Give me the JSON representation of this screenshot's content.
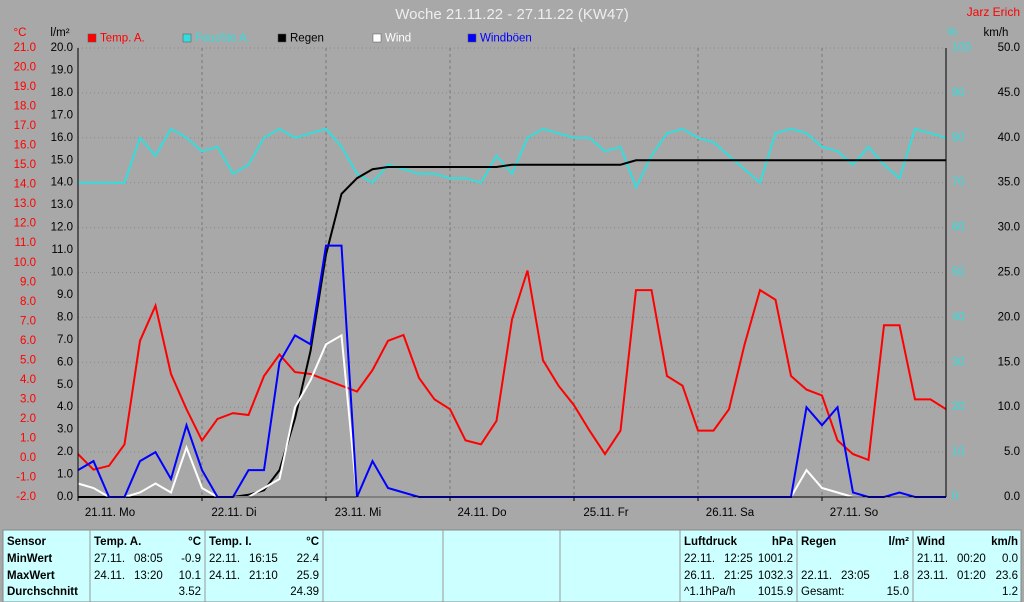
{
  "chart_data": {
    "type": "line",
    "title": "Woche 21.11.22 - 27.11.22 (KW47)",
    "author": "Jarz Erich",
    "axis_units": {
      "y": "°C",
      "y2": "l/m²",
      "y3": "%",
      "y4": "km/h"
    },
    "x": [
      0,
      3,
      6,
      9,
      12,
      15,
      18,
      21,
      24,
      27,
      30,
      33,
      36,
      39,
      42,
      45,
      48,
      51,
      54,
      57,
      60,
      63,
      66,
      69,
      72,
      75,
      78,
      81,
      84,
      87,
      90,
      93,
      96,
      99,
      102,
      105,
      108,
      111,
      114,
      117,
      120,
      123,
      126,
      129,
      132,
      135,
      138,
      141,
      144,
      147,
      150,
      153,
      156,
      159,
      162,
      165,
      168
    ],
    "xlim": [
      0,
      168
    ],
    "xticks": [
      {
        "value": 0,
        "label": "21.11. Mo"
      },
      {
        "value": 24,
        "label": "22.11. Di"
      },
      {
        "value": 48,
        "label": "23.11. Mi"
      },
      {
        "value": 72,
        "label": "24.11. Do"
      },
      {
        "value": 96,
        "label": "25.11. Fr"
      },
      {
        "value": 120,
        "label": "26.11. Sa"
      },
      {
        "value": 144,
        "label": "27.11. So"
      }
    ],
    "ylim": [
      -2,
      21
    ],
    "yticks": [
      {
        "value": -2,
        "label": "-2.0"
      },
      {
        "value": -1,
        "label": "-1.0"
      },
      {
        "value": 0,
        "label": "0.0"
      },
      {
        "value": 1,
        "label": "1.0"
      },
      {
        "value": 2,
        "label": "2.0"
      },
      {
        "value": 3,
        "label": "3.0"
      },
      {
        "value": 4,
        "label": "4.0"
      },
      {
        "value": 5,
        "label": "5.0"
      },
      {
        "value": 6,
        "label": "6.0"
      },
      {
        "value": 7,
        "label": "7.0"
      },
      {
        "value": 8,
        "label": "8.0"
      },
      {
        "value": 9,
        "label": "9.0"
      },
      {
        "value": 10,
        "label": "10.0"
      },
      {
        "value": 11,
        "label": "11.0"
      },
      {
        "value": 12,
        "label": "12.0"
      },
      {
        "value": 13,
        "label": "13.0"
      },
      {
        "value": 14,
        "label": "14.0"
      },
      {
        "value": 15,
        "label": "15.0"
      },
      {
        "value": 16,
        "label": "16.0"
      },
      {
        "value": 17,
        "label": "17.0"
      },
      {
        "value": 18,
        "label": "18.0"
      },
      {
        "value": 19,
        "label": "19.0"
      },
      {
        "value": 20,
        "label": "20.0"
      },
      {
        "value": 21,
        "label": "21.0"
      }
    ],
    "y2lim": [
      0,
      20
    ],
    "y2ticks": [
      {
        "value": 0,
        "label": "0.0"
      },
      {
        "value": 1,
        "label": "1.0"
      },
      {
        "value": 2,
        "label": "2.0"
      },
      {
        "value": 3,
        "label": "3.0"
      },
      {
        "value": 4,
        "label": "4.0"
      },
      {
        "value": 5,
        "label": "5.0"
      },
      {
        "value": 6,
        "label": "6.0"
      },
      {
        "value": 7,
        "label": "7.0"
      },
      {
        "value": 8,
        "label": "8.0"
      },
      {
        "value": 9,
        "label": "9.0"
      },
      {
        "value": 10,
        "label": "10.0"
      },
      {
        "value": 11,
        "label": "11.0"
      },
      {
        "value": 12,
        "label": "12.0"
      },
      {
        "value": 13,
        "label": "13.0"
      },
      {
        "value": 14,
        "label": "14.0"
      },
      {
        "value": 15,
        "label": "15.0"
      },
      {
        "value": 16,
        "label": "16.0"
      },
      {
        "value": 17,
        "label": "17.0"
      },
      {
        "value": 18,
        "label": "18.0"
      },
      {
        "value": 19,
        "label": "19.0"
      },
      {
        "value": 20,
        "label": "20.0"
      }
    ],
    "y3lim": [
      0,
      100
    ],
    "y3ticks": [
      0,
      10,
      20,
      30,
      40,
      50,
      60,
      70,
      80,
      90,
      100
    ],
    "y4lim": [
      0,
      50
    ],
    "y4ticks": [
      {
        "value": 0,
        "label": "0.0"
      },
      {
        "value": 5,
        "label": "5.0"
      },
      {
        "value": 10,
        "label": "10.0"
      },
      {
        "value": 15,
        "label": "15.0"
      },
      {
        "value": 20,
        "label": "20.0"
      },
      {
        "value": 25,
        "label": "25.0"
      },
      {
        "value": 30,
        "label": "30.0"
      },
      {
        "value": 35,
        "label": "35.0"
      },
      {
        "value": 40,
        "label": "40.0"
      },
      {
        "value": 45,
        "label": "45.0"
      },
      {
        "value": 50,
        "label": "50.0"
      }
    ],
    "grid": true,
    "series": [
      {
        "name": "Temp. A.",
        "color": "#ff0000",
        "axis": "y",
        "values": [
          0.2,
          -0.6,
          -0.4,
          0.7,
          6.0,
          7.8,
          4.3,
          2.5,
          0.9,
          2.0,
          2.3,
          2.2,
          4.2,
          5.3,
          4.4,
          4.3,
          4.0,
          3.7,
          3.4,
          4.5,
          6.0,
          6.3,
          4.1,
          3.0,
          2.5,
          0.9,
          0.7,
          1.9,
          7.1,
          9.6,
          5.0,
          3.7,
          2.7,
          1.4,
          0.2,
          1.4,
          8.6,
          8.6,
          4.2,
          3.7,
          1.4,
          1.4,
          2.5,
          5.8,
          8.6,
          8.1,
          4.2,
          3.5,
          3.2,
          0.9,
          0.2,
          -0.1,
          6.8,
          6.8,
          3.0,
          3.0,
          2.5
        ]
      },
      {
        "name": "Feuchte A.",
        "color": "#33dddd",
        "axis": "y3",
        "values": [
          70,
          70,
          70,
          70,
          80,
          76,
          82,
          80,
          77,
          78,
          72,
          74,
          80,
          82,
          80,
          81,
          82,
          78,
          72,
          70,
          74,
          73,
          72,
          72,
          71,
          71,
          70,
          76,
          72,
          80,
          82,
          81,
          80,
          80,
          77,
          78,
          69,
          76,
          81,
          82,
          80,
          79,
          76,
          73,
          70,
          81,
          82,
          81,
          78,
          77,
          74,
          78,
          74,
          71,
          82,
          81,
          80
        ]
      },
      {
        "name": "Regen",
        "color": "#000000",
        "axis": "y2",
        "values": [
          0,
          0,
          0,
          0,
          0,
          0,
          0,
          0,
          0,
          0,
          0,
          0.1,
          0.3,
          1.2,
          3.5,
          6.5,
          10.8,
          13.5,
          14.2,
          14.6,
          14.7,
          14.7,
          14.7,
          14.7,
          14.7,
          14.7,
          14.7,
          14.7,
          14.8,
          14.8,
          14.8,
          14.8,
          14.8,
          14.8,
          14.8,
          14.8,
          15.0,
          15.0,
          15.0,
          15.0,
          15.0,
          15.0,
          15.0,
          15.0,
          15.0,
          15.0,
          15.0,
          15.0,
          15.0,
          15.0,
          15.0,
          15.0,
          15.0,
          15.0,
          15.0,
          15.0,
          15.0
        ]
      },
      {
        "name": "Wind",
        "color": "#ffffff",
        "axis": "y4",
        "values": [
          1.5,
          1,
          0,
          0,
          0.5,
          1.5,
          0.5,
          5.5,
          1,
          0,
          0,
          0,
          1,
          2,
          10,
          13,
          17,
          18,
          0,
          0,
          0,
          0,
          0,
          0,
          0,
          0,
          0,
          0,
          0,
          0,
          0,
          0,
          0,
          0,
          0,
          0,
          0,
          0,
          0,
          0,
          0,
          0,
          0,
          0,
          0,
          0,
          0,
          3,
          1,
          0.5,
          0,
          0,
          0,
          0,
          0,
          0,
          0
        ]
      },
      {
        "name": "Windböen",
        "color": "#0000ff",
        "axis": "y4",
        "values": [
          3,
          4,
          0,
          0,
          4,
          5,
          2,
          8,
          3,
          0,
          0,
          3,
          3,
          15,
          18,
          17,
          28,
          28,
          0,
          4,
          1,
          0.5,
          0,
          0,
          0,
          0,
          0,
          0,
          0,
          0,
          0,
          0,
          0,
          0,
          0,
          0,
          0,
          0,
          0,
          0,
          0,
          0,
          0,
          0,
          0,
          0,
          0,
          10,
          8,
          10,
          0.5,
          0,
          0,
          0.5,
          0,
          0,
          0
        ]
      }
    ]
  },
  "table": {
    "row_labels": [
      "Sensor",
      "MinWert",
      "MaxWert",
      "Durchschnitt"
    ],
    "blocks": [
      {
        "title": "Temp. A.",
        "unit": "°C",
        "min": [
          "27.11.",
          "08:05",
          "-0.9"
        ],
        "max": [
          "24.11.",
          "13:20",
          "10.1"
        ],
        "avg": [
          "3.52"
        ]
      },
      {
        "title": "Temp. I.",
        "unit": "°C",
        "min": [
          "22.11.",
          "16:15",
          "22.4"
        ],
        "max": [
          "24.11.",
          "21:10",
          "25.9"
        ],
        "avg": [
          "24.39"
        ]
      },
      {
        "title": "Luftdruck",
        "unit": "hPa",
        "min": [
          "22.11.",
          "12:25",
          "1001.2"
        ],
        "max": [
          "26.11.",
          "21:25",
          "1032.3"
        ],
        "avg": [
          "^1.1hPa/h",
          "1015.9"
        ]
      },
      {
        "title": "Regen",
        "unit": "l/m²",
        "max": [
          "22.11.",
          "23:05",
          "1.8"
        ],
        "avg": [
          "Gesamt:",
          "15.0"
        ]
      },
      {
        "title": "Wind",
        "unit": "km/h",
        "min": [
          "21.11.",
          "00:20",
          "0.0"
        ],
        "max": [
          "23.11.",
          "01:20",
          "23.6"
        ],
        "avg": [
          "1.2"
        ]
      }
    ]
  }
}
